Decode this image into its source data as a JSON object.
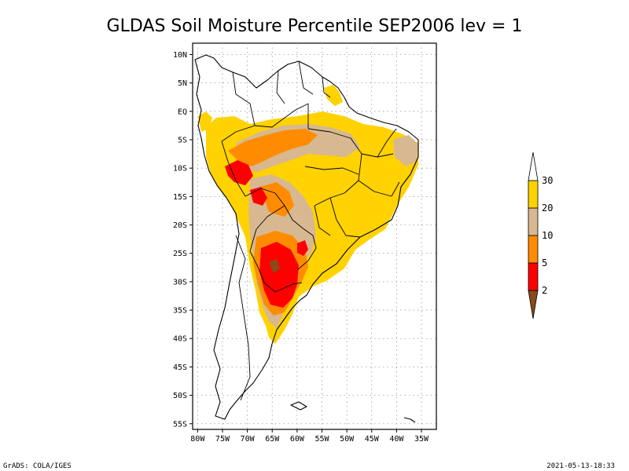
{
  "title": "GLDAS Soil Moisture Percentile SEP2006 lev = 1",
  "footer": {
    "left": "GrADS: COLA/IGES",
    "right": "2021-05-13-18:33"
  },
  "colors": {
    "below_2": "#8a4a1a",
    "2_5": "#ff0000",
    "5_10": "#ff8c00",
    "10_20": "#d8b890",
    "20_30": "#ffd200",
    "above_30": "#ffffff"
  },
  "chart_data": {
    "type": "heatmap",
    "title": "GLDAS Soil Moisture Percentile SEP2006 lev = 1",
    "x_ticks": [
      "80W",
      "75W",
      "70W",
      "65W",
      "60W",
      "55W",
      "50W",
      "45W",
      "40W",
      "35W"
    ],
    "y_ticks": [
      "10N",
      "5N",
      "EQ",
      "5S",
      "10S",
      "15S",
      "20S",
      "25S",
      "30S",
      "35S",
      "40S",
      "45S",
      "50S",
      "55S"
    ],
    "lon_range": [
      -81,
      -32
    ],
    "lat_range": [
      12,
      -56
    ],
    "grid": true,
    "legend_position": "right",
    "colorbar": {
      "levels": [
        "2",
        "5",
        "10",
        "20",
        "30"
      ],
      "colors": [
        "#8a4a1a",
        "#ff0000",
        "#ff8c00",
        "#d8b890",
        "#ffd200",
        "#ffffff"
      ]
    }
  }
}
